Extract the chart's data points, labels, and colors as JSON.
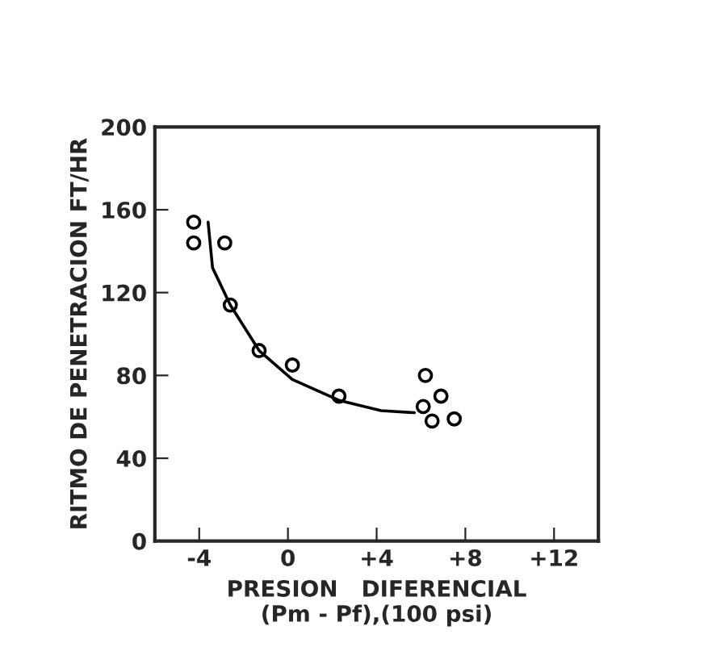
{
  "chart_data": {
    "type": "scatter",
    "xlabel": "PRESION   DIFERENCIAL\n(Pm - Pf),(100 psi)",
    "ylabel": "RITMO DE PENETRACION FT/HR",
    "series": [
      {
        "color": "#000000",
        "marker": "circle",
        "x": [
          -4.25,
          -4.25,
          -2.85,
          -2.6,
          -1.3,
          0.2,
          2.3,
          6.2,
          6.1,
          6.9,
          6.5,
          7.5
        ],
        "values": [
          154,
          144,
          144,
          114,
          92,
          85,
          70,
          80,
          65,
          70,
          58,
          59
        ]
      },
      {
        "type": "line",
        "color": "#000000",
        "marker": "none",
        "line_style": "solid",
        "x": [
          -3.6,
          -3.4,
          -2.6,
          -1.3,
          0.2,
          2.3,
          4.2,
          5.7
        ],
        "values": [
          154,
          132,
          114,
          92,
          78,
          68,
          63,
          62
        ]
      }
    ],
    "xlim": [
      -6,
      14
    ],
    "xticks": [
      -4,
      0,
      {
        "value": 4,
        "label": "+4"
      },
      {
        "value": 8,
        "label": "+8"
      },
      {
        "value": 12,
        "label": "+12"
      }
    ],
    "ylim": [
      0,
      200
    ],
    "yticks": [
      0,
      40,
      80,
      120,
      160,
      200
    ],
    "grid": false,
    "legend": false
  }
}
